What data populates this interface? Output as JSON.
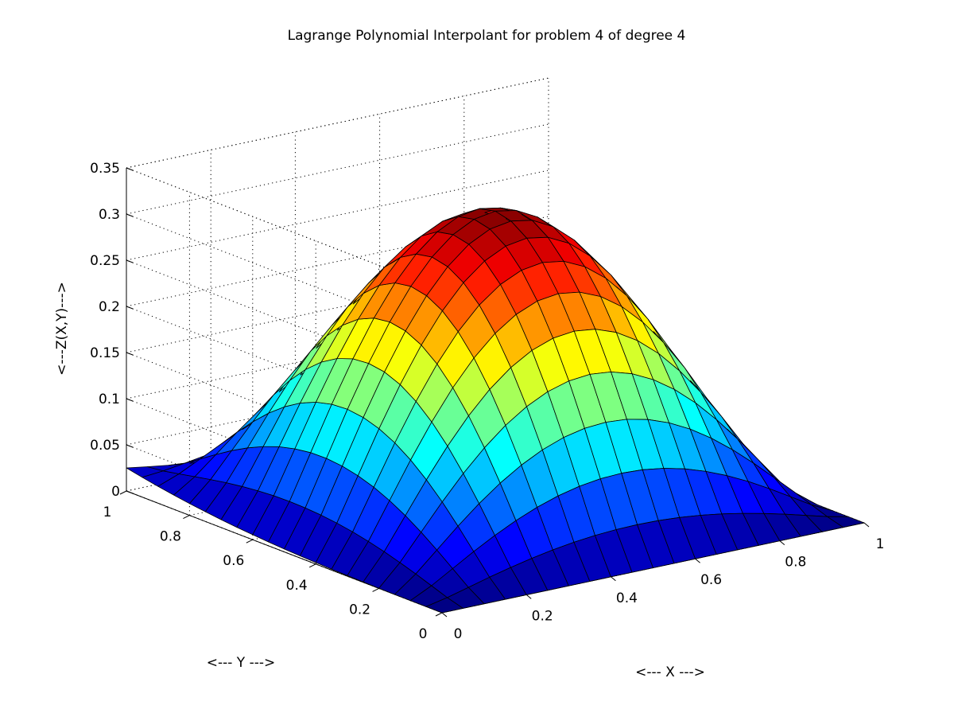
{
  "chart_data": {
    "type": "surface",
    "title": "Lagrange Polynomial Interpolant for problem 4 of degree 4",
    "xlabel": "<--- X --->",
    "ylabel": "<--- Y --->",
    "zlabel": "<---Z(X,Y)--->",
    "xlim": [
      0,
      1
    ],
    "ylim": [
      0,
      1
    ],
    "zlim": [
      0,
      0.35
    ],
    "x_ticks": [
      "0",
      "0.2",
      "0.4",
      "0.6",
      "0.8",
      "1"
    ],
    "y_ticks": [
      "0",
      "0.2",
      "0.4",
      "0.6",
      "0.8",
      "1"
    ],
    "z_ticks": [
      "0",
      "0.05",
      "0.1",
      "0.15",
      "0.2",
      "0.25",
      "0.3",
      "0.35"
    ],
    "grid": true,
    "colormap": "jet",
    "mesh_divisions": 20,
    "edge_values": {
      "z_at_x0_y1": 0.025,
      "z_at_x1_y0": 0.0,
      "z_at_x0_y0": 0.0,
      "z_at_x1_y1": 0.0
    },
    "peak": {
      "x": 0.5,
      "y": 0.5,
      "z": 0.32
    }
  }
}
